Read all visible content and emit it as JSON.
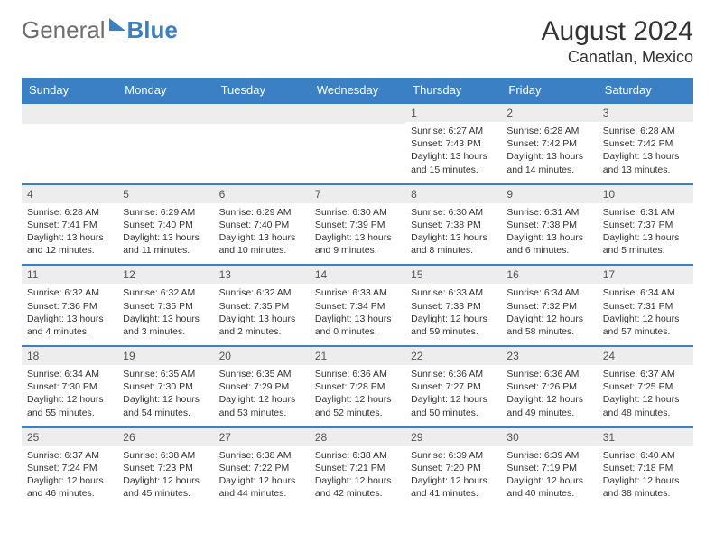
{
  "brand": {
    "part1": "General",
    "part2": "Blue"
  },
  "title": "August 2024",
  "location": "Canatlan, Mexico",
  "colors": {
    "accent": "#3b7fc4",
    "header_bg": "#3b7fc4",
    "daynum_bg": "#ededed",
    "text": "#333333",
    "muted": "#6e6e6e"
  },
  "weekdays": [
    "Sunday",
    "Monday",
    "Tuesday",
    "Wednesday",
    "Thursday",
    "Friday",
    "Saturday"
  ],
  "weeks": [
    [
      null,
      null,
      null,
      null,
      {
        "n": "1",
        "sunrise": "6:27 AM",
        "sunset": "7:43 PM",
        "daylight": "13 hours and 15 minutes."
      },
      {
        "n": "2",
        "sunrise": "6:28 AM",
        "sunset": "7:42 PM",
        "daylight": "13 hours and 14 minutes."
      },
      {
        "n": "3",
        "sunrise": "6:28 AM",
        "sunset": "7:42 PM",
        "daylight": "13 hours and 13 minutes."
      }
    ],
    [
      {
        "n": "4",
        "sunrise": "6:28 AM",
        "sunset": "7:41 PM",
        "daylight": "13 hours and 12 minutes."
      },
      {
        "n": "5",
        "sunrise": "6:29 AM",
        "sunset": "7:40 PM",
        "daylight": "13 hours and 11 minutes."
      },
      {
        "n": "6",
        "sunrise": "6:29 AM",
        "sunset": "7:40 PM",
        "daylight": "13 hours and 10 minutes."
      },
      {
        "n": "7",
        "sunrise": "6:30 AM",
        "sunset": "7:39 PM",
        "daylight": "13 hours and 9 minutes."
      },
      {
        "n": "8",
        "sunrise": "6:30 AM",
        "sunset": "7:38 PM",
        "daylight": "13 hours and 8 minutes."
      },
      {
        "n": "9",
        "sunrise": "6:31 AM",
        "sunset": "7:38 PM",
        "daylight": "13 hours and 6 minutes."
      },
      {
        "n": "10",
        "sunrise": "6:31 AM",
        "sunset": "7:37 PM",
        "daylight": "13 hours and 5 minutes."
      }
    ],
    [
      {
        "n": "11",
        "sunrise": "6:32 AM",
        "sunset": "7:36 PM",
        "daylight": "13 hours and 4 minutes."
      },
      {
        "n": "12",
        "sunrise": "6:32 AM",
        "sunset": "7:35 PM",
        "daylight": "13 hours and 3 minutes."
      },
      {
        "n": "13",
        "sunrise": "6:32 AM",
        "sunset": "7:35 PM",
        "daylight": "13 hours and 2 minutes."
      },
      {
        "n": "14",
        "sunrise": "6:33 AM",
        "sunset": "7:34 PM",
        "daylight": "13 hours and 0 minutes."
      },
      {
        "n": "15",
        "sunrise": "6:33 AM",
        "sunset": "7:33 PM",
        "daylight": "12 hours and 59 minutes."
      },
      {
        "n": "16",
        "sunrise": "6:34 AM",
        "sunset": "7:32 PM",
        "daylight": "12 hours and 58 minutes."
      },
      {
        "n": "17",
        "sunrise": "6:34 AM",
        "sunset": "7:31 PM",
        "daylight": "12 hours and 57 minutes."
      }
    ],
    [
      {
        "n": "18",
        "sunrise": "6:34 AM",
        "sunset": "7:30 PM",
        "daylight": "12 hours and 55 minutes."
      },
      {
        "n": "19",
        "sunrise": "6:35 AM",
        "sunset": "7:30 PM",
        "daylight": "12 hours and 54 minutes."
      },
      {
        "n": "20",
        "sunrise": "6:35 AM",
        "sunset": "7:29 PM",
        "daylight": "12 hours and 53 minutes."
      },
      {
        "n": "21",
        "sunrise": "6:36 AM",
        "sunset": "7:28 PM",
        "daylight": "12 hours and 52 minutes."
      },
      {
        "n": "22",
        "sunrise": "6:36 AM",
        "sunset": "7:27 PM",
        "daylight": "12 hours and 50 minutes."
      },
      {
        "n": "23",
        "sunrise": "6:36 AM",
        "sunset": "7:26 PM",
        "daylight": "12 hours and 49 minutes."
      },
      {
        "n": "24",
        "sunrise": "6:37 AM",
        "sunset": "7:25 PM",
        "daylight": "12 hours and 48 minutes."
      }
    ],
    [
      {
        "n": "25",
        "sunrise": "6:37 AM",
        "sunset": "7:24 PM",
        "daylight": "12 hours and 46 minutes."
      },
      {
        "n": "26",
        "sunrise": "6:38 AM",
        "sunset": "7:23 PM",
        "daylight": "12 hours and 45 minutes."
      },
      {
        "n": "27",
        "sunrise": "6:38 AM",
        "sunset": "7:22 PM",
        "daylight": "12 hours and 44 minutes."
      },
      {
        "n": "28",
        "sunrise": "6:38 AM",
        "sunset": "7:21 PM",
        "daylight": "12 hours and 42 minutes."
      },
      {
        "n": "29",
        "sunrise": "6:39 AM",
        "sunset": "7:20 PM",
        "daylight": "12 hours and 41 minutes."
      },
      {
        "n": "30",
        "sunrise": "6:39 AM",
        "sunset": "7:19 PM",
        "daylight": "12 hours and 40 minutes."
      },
      {
        "n": "31",
        "sunrise": "6:40 AM",
        "sunset": "7:18 PM",
        "daylight": "12 hours and 38 minutes."
      }
    ]
  ],
  "labels": {
    "sunrise": "Sunrise:",
    "sunset": "Sunset:",
    "daylight": "Daylight:"
  }
}
